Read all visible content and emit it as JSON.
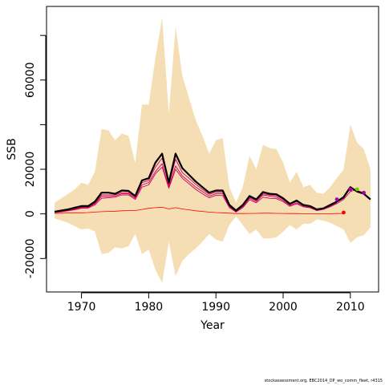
{
  "chart_data": {
    "type": "line",
    "xlabel": "Year",
    "ylabel": "SSB",
    "xlim": [
      1964.8,
      2014.2
    ],
    "ylim": [
      -35000,
      93000
    ],
    "xticks": [
      1970,
      1980,
      1990,
      2000,
      2010
    ],
    "yticks_labeled": [
      -20000,
      0,
      20000,
      60000
    ],
    "yticks_unlabeled": [
      40000,
      80000
    ],
    "colors": {
      "band": "#f5deb3",
      "main": "#000000",
      "retro": "#cc0066",
      "bottom": "#ff0000",
      "magenta_dot": "#aa00aa",
      "green_dot": "#66cc00"
    },
    "ci_band": {
      "x": [
        1966,
        1967,
        1968,
        1969,
        1970,
        1971,
        1972,
        1973,
        1974,
        1975,
        1976,
        1977,
        1978,
        1979,
        1980,
        1981,
        1982,
        1983,
        1984,
        1985,
        1986,
        1987,
        1988,
        1989,
        1990,
        1991,
        1992,
        1993,
        1994,
        1995,
        1996,
        1997,
        1998,
        1999,
        2000,
        2001,
        2002,
        2003,
        2004,
        2005,
        2006,
        2007,
        2008,
        2009,
        2010,
        2011,
        2012,
        2013
      ],
      "upper": [
        5000,
        7000,
        9000,
        11000,
        14000,
        13000,
        19000,
        38000,
        37500,
        33000,
        36000,
        35000,
        23000,
        49000,
        49000,
        70000,
        88000,
        45000,
        84000,
        62000,
        52000,
        42000,
        35000,
        27000,
        33000,
        34000,
        12000,
        5000,
        12000,
        26000,
        20000,
        31000,
        29500,
        29000,
        23000,
        14000,
        19000,
        12000,
        13000,
        9500,
        9000,
        12000,
        16000,
        20000,
        40000,
        32000,
        29000,
        20000
      ],
      "lower": [
        -2000,
        -3000,
        -4000,
        -5500,
        -7000,
        -6500,
        -8000,
        -18000,
        -17500,
        -15000,
        -15500,
        -14500,
        -9000,
        -18000,
        -16000,
        -25000,
        -31000,
        -12500,
        -28000,
        -21000,
        -18000,
        -15500,
        -12500,
        -9000,
        -11500,
        -12500,
        -5000,
        -1000,
        -5000,
        -9000,
        -7000,
        -11000,
        -11000,
        -10500,
        -8000,
        -5000,
        -7000,
        -4500,
        -4500,
        -2500,
        -3000,
        -4000,
        -5500,
        -7000,
        -13000,
        -10500,
        -9500,
        -6000
      ]
    },
    "series": [
      {
        "role": "main",
        "x": [
          1966,
          1967,
          1968,
          1969,
          1970,
          1971,
          1972,
          1973,
          1974,
          1975,
          1976,
          1977,
          1978,
          1979,
          1980,
          1981,
          1982,
          1983,
          1984,
          1985,
          1986,
          1987,
          1988,
          1989,
          1990,
          1991,
          1992,
          1993,
          1994,
          1995,
          1996,
          1997,
          1998,
          1999,
          2000,
          2001,
          2002,
          2003,
          2004,
          2005,
          2006,
          2007,
          2008,
          2009,
          2010,
          2011,
          2012,
          2013
        ],
        "y": [
          1000,
          1500,
          2000,
          2800,
          3500,
          3500,
          5500,
          9500,
          9500,
          9000,
          10500,
          10300,
          8000,
          15000,
          16000,
          23000,
          27000,
          14000,
          27000,
          20500,
          17500,
          14500,
          12000,
          9500,
          10500,
          10500,
          4000,
          1500,
          4000,
          8000,
          6500,
          9800,
          9000,
          8800,
          7000,
          4500,
          6000,
          4000,
          3500,
          2000,
          2500,
          4000,
          5500,
          7500,
          12000,
          10000,
          9000,
          6500
        ]
      },
      {
        "role": "retro-1",
        "x": [
          1966,
          1967,
          1968,
          1969,
          1970,
          1971,
          1972,
          1973,
          1974,
          1975,
          1976,
          1977,
          1978,
          1979,
          1980,
          1981,
          1982,
          1983,
          1984,
          1985,
          1986,
          1987,
          1988,
          1989,
          1990,
          1991,
          1992,
          1993,
          1994,
          1995,
          1996,
          1997,
          1998,
          1999,
          2000,
          2001,
          2002,
          2003,
          2004,
          2005,
          2006,
          2007,
          2008
        ],
        "y": [
          700,
          1000,
          1500,
          2000,
          2800,
          2800,
          4500,
          7800,
          7800,
          8000,
          9000,
          9000,
          7000,
          13000,
          14000,
          19000,
          22500,
          12000,
          21500,
          17000,
          14500,
          12000,
          10000,
          8000,
          9000,
          9000,
          3200,
          1000,
          3200,
          7000,
          5500,
          8500,
          8000,
          7500,
          6000,
          3800,
          5000,
          3500,
          3000,
          1700,
          2200,
          3500,
          5000
        ]
      },
      {
        "role": "retro-2",
        "x": [
          1966,
          1967,
          1968,
          1969,
          1970,
          1971,
          1972,
          1973,
          1974,
          1975,
          1976,
          1977,
          1978,
          1979,
          1980,
          1981,
          1982,
          1983,
          1984,
          1985,
          1986,
          1987,
          1988,
          1989,
          1990,
          1991,
          1992,
          1993,
          1994,
          1995,
          1996,
          1997,
          1998,
          1999,
          2000,
          2001,
          2002,
          2003,
          2004,
          2005,
          2006,
          2007,
          2008,
          2009,
          2010,
          2011
        ],
        "y": [
          600,
          900,
          1400,
          1800,
          2500,
          2600,
          4000,
          7000,
          7200,
          7500,
          8500,
          8500,
          6500,
          12000,
          13000,
          18000,
          21000,
          11500,
          20000,
          16000,
          13500,
          11000,
          9000,
          7200,
          8300,
          8200,
          2800,
          800,
          2800,
          6300,
          5000,
          7500,
          7000,
          6800,
          5500,
          3400,
          4500,
          3200,
          2700,
          1500,
          2000,
          3200,
          4600,
          6500,
          10000,
          11000
        ]
      },
      {
        "role": "retro-3",
        "x": [
          1966,
          1967,
          1968,
          1969,
          1970,
          1971,
          1972,
          1973,
          1974,
          1975,
          1976,
          1977,
          1978,
          1979,
          1980,
          1981,
          1982,
          1983,
          1984,
          1985,
          1986,
          1987,
          1988,
          1989,
          1990,
          1991,
          1992,
          1993,
          1994,
          1995,
          1996,
          1997,
          1998,
          1999,
          2000,
          2001,
          2002,
          2003,
          2004,
          2005,
          2006,
          2007,
          2008,
          2009,
          2010,
          2011,
          2012
        ],
        "y": [
          800,
          1200,
          1700,
          2300,
          3000,
          3000,
          4800,
          8500,
          8500,
          8500,
          9500,
          9500,
          7500,
          14000,
          15000,
          21000,
          25000,
          13000,
          24500,
          18500,
          16000,
          13300,
          11000,
          8800,
          9800,
          9800,
          3600,
          1200,
          3600,
          7500,
          6000,
          9000,
          8500,
          8200,
          6500,
          4200,
          5600,
          3800,
          3300,
          1900,
          2400,
          3800,
          5300,
          7000,
          11500,
          10500,
          9500
        ]
      },
      {
        "role": "bottom",
        "x": [
          1966,
          1967,
          1968,
          1969,
          1970,
          1971,
          1972,
          1973,
          1974,
          1975,
          1976,
          1977,
          1978,
          1979,
          1980,
          1981,
          1982,
          1983,
          1984,
          1985,
          1986,
          1987,
          1988,
          1989,
          1990,
          1991,
          1992,
          1993,
          1994,
          1995,
          1996,
          1997,
          1998,
          1999,
          2000,
          2001,
          2002,
          2003,
          2004,
          2005,
          2006,
          2007,
          2008,
          2009
        ],
        "y": [
          200,
          300,
          400,
          500,
          500,
          600,
          800,
          1000,
          1100,
          1200,
          1400,
          1500,
          1500,
          2000,
          2500,
          2800,
          3000,
          2200,
          2800,
          2200,
          1800,
          1400,
          1100,
          800,
          600,
          500,
          300,
          150,
          150,
          200,
          250,
          300,
          300,
          250,
          200,
          150,
          150,
          100,
          100,
          80,
          80,
          100,
          150,
          200
        ]
      }
    ],
    "points": [
      {
        "x": 2008,
        "y": 6500,
        "color": "#aa00aa"
      },
      {
        "x": 2009,
        "y": 600,
        "color": "#ff0000"
      },
      {
        "x": 2010,
        "y": 11000,
        "color": "#aa00aa"
      },
      {
        "x": 2011,
        "y": 11000,
        "color": "#66cc00"
      },
      {
        "x": 2012,
        "y": 9500,
        "color": "#aa00aa"
      }
    ]
  },
  "footer": {
    "credit": "stockassessment.org, EBC2014_DP_wo_comm_fleet, r4315"
  }
}
